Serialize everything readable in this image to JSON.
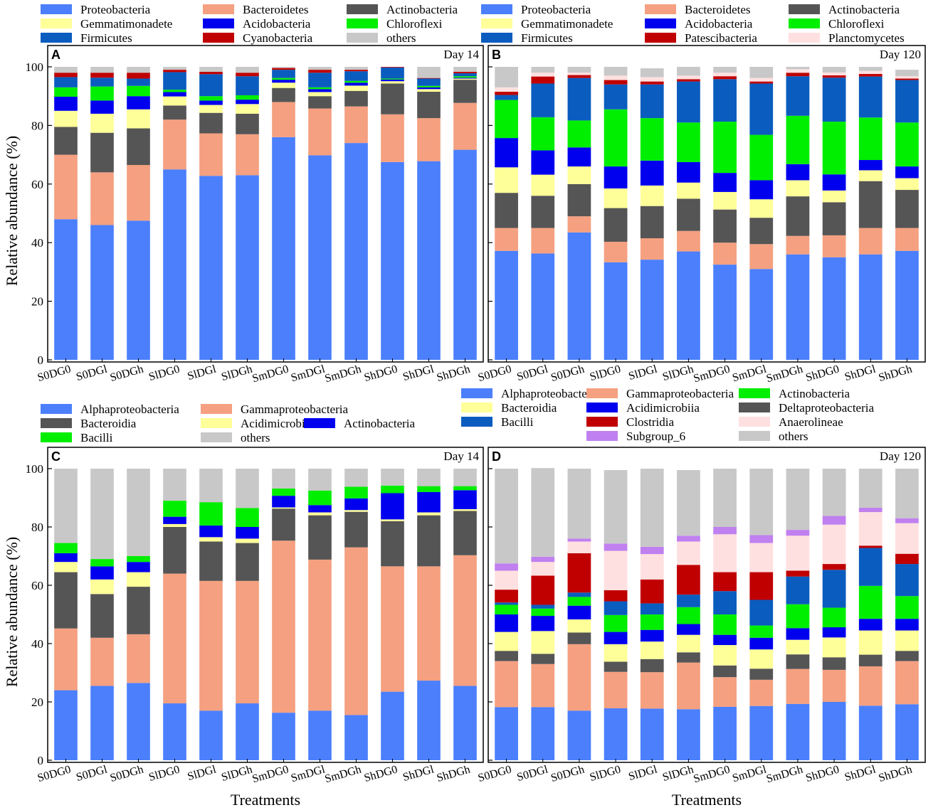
{
  "chart_data": [
    {
      "type": "bar",
      "stacked": true,
      "panel": "A",
      "day_label": "Day 14",
      "ylabel": "Relative  abundance (%)",
      "xlabel": "",
      "ylim": [
        0,
        100
      ],
      "yticks": [
        0,
        20,
        40,
        60,
        80,
        100
      ],
      "categories": [
        "S0DG0",
        "S0DGl",
        "S0DGh",
        "SlDG0",
        "SlDGl",
        "SlDGh",
        "SmDG0",
        "SmDGl",
        "SmDGh",
        "ShDG0",
        "ShDGl",
        "ShDGh"
      ],
      "legend": [
        [
          "Proteobacteria",
          "Bacteroidetes",
          "Actinobacteria"
        ],
        [
          "Gemmatimonadete",
          "Acidobacteria",
          "Chloroflexi"
        ],
        [
          "Firmicutes",
          "Cyanobacteria",
          "others"
        ]
      ],
      "series": [
        {
          "name": "Proteobacteria",
          "color": "#4b7ffc",
          "values": [
            48,
            46,
            47.5,
            65,
            62.8,
            63,
            76,
            69.8,
            74,
            67.5,
            67.8,
            71.7
          ]
        },
        {
          "name": "Bacteroidetes",
          "color": "#f5a080",
          "values": [
            22,
            18,
            19,
            17,
            14.5,
            14,
            12,
            16,
            12.5,
            16.3,
            14.7,
            16
          ]
        },
        {
          "name": "Actinobacteria",
          "color": "#555555",
          "values": [
            9.5,
            13.5,
            12.5,
            4.8,
            7,
            7,
            4.8,
            4.2,
            5.3,
            10.5,
            9,
            7.9
          ]
        },
        {
          "name": "Gemmatimonadete",
          "color": "#ffff99",
          "values": [
            5.5,
            6.5,
            6.5,
            3.1,
            2.7,
            3.3,
            1.8,
            1.4,
            1.8,
            0.8,
            0.9,
            0.4
          ]
        },
        {
          "name": "Acidobacteria",
          "color": "#0000ee",
          "values": [
            4.8,
            4.5,
            4.5,
            1.5,
            1.5,
            1.5,
            1,
            1,
            1,
            0.6,
            0.6,
            0.3
          ]
        },
        {
          "name": "Chloroflexi",
          "color": "#00ee00",
          "values": [
            3.2,
            4.8,
            3.5,
            0.8,
            1.5,
            1.5,
            0.6,
            0.6,
            0.6,
            0.3,
            0.5,
            0.5
          ]
        },
        {
          "name": "Firmicutes",
          "color": "#0a5cbf",
          "values": [
            3.5,
            3,
            2.5,
            6,
            7.5,
            6.5,
            2.8,
            5,
            3.3,
            3.8,
            2.5,
            1
          ]
        },
        {
          "name": "Cyanobacteria",
          "color": "#c00000",
          "values": [
            1.5,
            1.7,
            2,
            0.8,
            0.8,
            1.2,
            0.6,
            1,
            0.5,
            0.2,
            0.2,
            0.5
          ]
        },
        {
          "name": "others",
          "color": "#c8c8c8",
          "values": [
            2,
            2,
            2,
            1,
            1.7,
            2,
            0.4,
            1,
            1,
            0,
            3.8,
            1.7
          ]
        }
      ]
    },
    {
      "type": "bar",
      "stacked": true,
      "panel": "B",
      "day_label": "Day 120",
      "ylabel": "",
      "xlabel": "",
      "ylim": [
        0,
        100
      ],
      "yticks": [
        0,
        20,
        40,
        60,
        80,
        100
      ],
      "categories": [
        "S0DG0",
        "S0DGl",
        "S0DGh",
        "SlDG0",
        "SlDGl",
        "SlDGh",
        "SmDG0",
        "SmDGl",
        "SmDGh",
        "ShDG0",
        "ShDGl",
        "ShDGh"
      ],
      "legend": [
        [
          "Proteobacteria",
          "Bacteroidetes",
          "Actinobacteria"
        ],
        [
          "Gemmatimonadete",
          "Acidobacteria",
          "Chloroflexi"
        ],
        [
          "Firmicutes",
          "Patescibacteria",
          "Planctomycetes"
        ]
      ],
      "series": [
        {
          "name": "Proteobacteria",
          "color": "#4b7ffc",
          "values": [
            37.2,
            36.3,
            43.5,
            33.3,
            34.2,
            37,
            32.5,
            31,
            36,
            35,
            36,
            37.2
          ]
        },
        {
          "name": "Bacteroidetes",
          "color": "#f5a080",
          "values": [
            7.8,
            8.7,
            5.5,
            7,
            7.3,
            7,
            7.5,
            8.5,
            6.3,
            7.5,
            9,
            7.8
          ]
        },
        {
          "name": "Actinobacteria",
          "color": "#555555",
          "values": [
            12,
            11,
            11,
            11.5,
            11,
            11,
            11.3,
            9,
            13.5,
            11.3,
            16,
            13
          ]
        },
        {
          "name": "Gemmatimonadete",
          "color": "#ffff99",
          "values": [
            8.7,
            7.2,
            6,
            6.7,
            7,
            5.5,
            6,
            6.3,
            5.5,
            4,
            3.7,
            4
          ]
        },
        {
          "name": "Acidobacteria",
          "color": "#0000ee",
          "values": [
            10,
            8.3,
            6.5,
            7.5,
            8.5,
            7,
            6.5,
            6.5,
            5.5,
            5.5,
            3.5,
            4
          ]
        },
        {
          "name": "Chloroflexi",
          "color": "#00ee00",
          "values": [
            13,
            11.3,
            9.2,
            19.5,
            14.5,
            13.5,
            17.5,
            15.5,
            16.5,
            18,
            14.5,
            15
          ]
        },
        {
          "name": "Firmicutes",
          "color": "#0a5cbf",
          "values": [
            1.7,
            11.5,
            14.5,
            8.5,
            11.5,
            14,
            14.5,
            17.5,
            13.5,
            15,
            14,
            14.5
          ]
        },
        {
          "name": "Patescibacteria",
          "color": "#c00000",
          "values": [
            1.1,
            2.4,
            1,
            1.5,
            1,
            0.8,
            1,
            0.7,
            1.2,
            0.8,
            0.9,
            0.5
          ]
        },
        {
          "name": "Planctomycetes",
          "color": "#ffe0e0",
          "values": [
            1.5,
            1.3,
            0.8,
            1.5,
            1.5,
            1.2,
            1.2,
            1.2,
            1.2,
            1,
            1,
            0.8
          ]
        },
        {
          "name": "others",
          "color": "#c8c8c8",
          "values": [
            7,
            2,
            2,
            3,
            3,
            3,
            2,
            3.8,
            0.8,
            1.9,
            1.4,
            2.2
          ]
        }
      ]
    },
    {
      "type": "bar",
      "stacked": true,
      "panel": "C",
      "day_label": "Day 14",
      "ylabel": "Relative abundance (%)",
      "xlabel": "Treatments",
      "ylim": [
        0,
        100
      ],
      "yticks": [
        0,
        20,
        40,
        60,
        80,
        100
      ],
      "categories": [
        "S0DG0",
        "S0DGl",
        "S0DGh",
        "SlDG0",
        "SlDGl",
        "SlDGh",
        "SmDG0",
        "SmDGl",
        "SmDGh",
        "ShDG0",
        "ShDGl",
        "ShDGh"
      ],
      "legend": [
        [
          "Alphaproteobacteria",
          "Gammaproteobacteria"
        ],
        [
          "Bacteroidia",
          "Acidimicrobiia",
          "Actinobacteria"
        ],
        [
          "Bacilli",
          "others"
        ]
      ],
      "series": [
        {
          "name": "Alphaproteobacteria",
          "color": "#4b7ffc",
          "values": [
            24,
            25.5,
            26.5,
            19.5,
            17,
            19.5,
            16.3,
            17,
            15.5,
            23.5,
            27.3,
            25.5
          ]
        },
        {
          "name": "Gammaproteobacteria",
          "color": "#f5a080",
          "values": [
            21.2,
            16.5,
            16.7,
            44.5,
            44.5,
            42,
            59,
            51.8,
            57.5,
            43,
            39.2,
            44.8
          ]
        },
        {
          "name": "Bacteroidia",
          "color": "#555555",
          "values": [
            19.3,
            15,
            16.3,
            16,
            13.5,
            13,
            11,
            15.2,
            12.2,
            15.5,
            17.5,
            15.2
          ]
        },
        {
          "name": "Acidimicrobiia",
          "color": "#ffff99",
          "values": [
            3.5,
            5,
            5,
            1,
            1.5,
            1.5,
            0.4,
            1,
            0.6,
            0.6,
            1,
            0.6
          ]
        },
        {
          "name": "Actinobacteria",
          "color": "#0000ee",
          "values": [
            3,
            4.5,
            3.5,
            2.5,
            4,
            4,
            4,
            2.5,
            4,
            9,
            7,
            6.5
          ]
        },
        {
          "name": "Bacilli",
          "color": "#00ee00",
          "values": [
            3.5,
            2.5,
            2,
            5.5,
            8,
            6.5,
            2.5,
            5,
            4,
            2.6,
            2,
            1.4
          ]
        },
        {
          "name": "others",
          "color": "#c8c8c8",
          "values": [
            25.5,
            31,
            30,
            11,
            11.5,
            13.5,
            6.8,
            7.5,
            6.2,
            5.8,
            6,
            6
          ]
        }
      ]
    },
    {
      "type": "bar",
      "stacked": true,
      "panel": "D",
      "day_label": "Day 120",
      "ylabel": "",
      "xlabel": "Treatments",
      "ylim": [
        0,
        100
      ],
      "yticks": [
        0,
        20,
        40,
        60,
        80,
        100
      ],
      "categories": [
        "S0DG0",
        "S0DGl",
        "S0DGh",
        "SlDG0",
        "SlDGl",
        "SlDGh",
        "SmDG0",
        "SmDGl",
        "SmDGh",
        "ShDG0",
        "ShDGl",
        "ShDGh"
      ],
      "legend": [
        [
          "Alphaproteobacteria",
          "Gammaproteobacteria",
          "Actinobacteria"
        ],
        [
          "Bacteroidia",
          "Acidimicrobiia",
          "Deltaproteobacteria"
        ],
        [
          "Bacilli",
          "Clostridia",
          "Anaerolineae"
        ],
        [
          "",
          "Subgroup_6",
          "others"
        ]
      ],
      "series": [
        {
          "name": "Alphaproteobacteria",
          "color": "#4b7ffc",
          "values": [
            18.2,
            18.2,
            17,
            17.8,
            17.7,
            17.5,
            18.3,
            18.6,
            19.3,
            20,
            18.7,
            19.2
          ]
        },
        {
          "name": "Gammaproteobacteria",
          "color": "#f5a080",
          "values": [
            15.8,
            14.8,
            22.8,
            12.5,
            12.5,
            16,
            10.2,
            9,
            12,
            11,
            13.5,
            14.8
          ]
        },
        {
          "name": "Deltaproteobacteria",
          "color": "#555555",
          "values": [
            3.5,
            3.5,
            4,
            3.5,
            4.5,
            3.5,
            4,
            3.8,
            5,
            4.3,
            4,
            3.5
          ]
        },
        {
          "name": "Bacteroidia",
          "color": "#ffff99",
          "values": [
            6.5,
            7.8,
            4.5,
            6,
            6,
            6,
            7,
            6.6,
            5,
            6.8,
            8.3,
            7
          ]
        },
        {
          "name": "Acidimicrobiia",
          "color": "#0000ee",
          "values": [
            6,
            5.2,
            4.7,
            4.2,
            4,
            3.7,
            3.5,
            4,
            4,
            3.5,
            4,
            4
          ]
        },
        {
          "name": "Actinobacteria",
          "color": "#00ee00",
          "values": [
            3.3,
            2.5,
            3,
            5.8,
            5.3,
            5.8,
            7,
            4.2,
            8.2,
            6.7,
            11.3,
            7.8
          ]
        },
        {
          "name": "Bacilli",
          "color": "#0a5cbf",
          "values": [
            0.8,
            1.3,
            1.5,
            4.7,
            3.8,
            4.3,
            8,
            8.8,
            9.5,
            13,
            13,
            11
          ]
        },
        {
          "name": "Clostridia",
          "color": "#c00000",
          "values": [
            4.4,
            10,
            13.5,
            3.8,
            8.2,
            10.2,
            6.5,
            9.5,
            2,
            2,
            0.8,
            3.5
          ]
        },
        {
          "name": "Anaerolineae",
          "color": "#ffe0e0",
          "values": [
            6.5,
            4.7,
            4,
            13.5,
            8.7,
            8,
            13,
            10,
            12,
            13.5,
            11.5,
            10.5
          ]
        },
        {
          "name": "Subgroup_6",
          "color": "#c080f0",
          "values": [
            2.5,
            1.8,
            1,
            2.5,
            2.5,
            2,
            2.5,
            2.7,
            2,
            3,
            1.5,
            1.7
          ]
        },
        {
          "name": "others",
          "color": "#c8c8c8",
          "values": [
            32.5,
            30.4,
            24,
            25.2,
            26.8,
            22.5,
            20,
            22.8,
            21,
            16.2,
            13.4,
            17
          ]
        }
      ]
    }
  ]
}
